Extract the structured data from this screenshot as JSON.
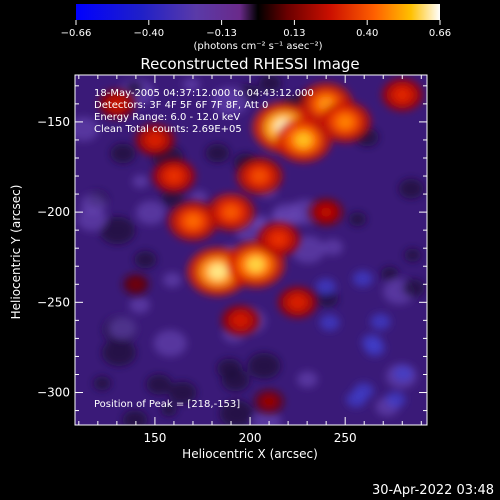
{
  "chart_data": {
    "type": "heatmap",
    "title": "Reconstructed RHESSI Image",
    "xlabel": "Heliocentric X (arcsec)",
    "ylabel": "Heliocentric Y (arcsec)",
    "xlim": [
      108,
      293
    ],
    "ylim": [
      -318,
      -124
    ],
    "xticks": [
      150,
      200,
      250
    ],
    "yticks": [
      -150,
      -200,
      -250,
      -300
    ],
    "colorbar": {
      "min": -0.66,
      "max": 0.66,
      "ticks": [
        "-0.66",
        "-0.40",
        "-0.13",
        "0.13",
        "0.40",
        "0.66"
      ],
      "unit_label": "(photons cm⁻² s⁻¹ asec⁻²)"
    },
    "annotations": [
      "18-May-2005 04:37:12.000 to 04:43:12.000",
      "Detectors: 3F 4F 5F 6F 7F 8F, Att 0",
      "Energy Range: 6.0 - 12.0 keV",
      "Clean     Total counts: 2.69E+05",
      "Position of Peak = [218,-153]"
    ],
    "footer_timestamp": "30-Apr-2022 03:48",
    "peaks": [
      {
        "x": 218,
        "y": -153,
        "value": 0.66
      },
      {
        "x": 183,
        "y": -233,
        "value": 0.62
      },
      {
        "x": 203,
        "y": -229,
        "value": 0.58
      },
      {
        "x": 228,
        "y": -160,
        "value": 0.55
      },
      {
        "x": 240,
        "y": -140,
        "value": 0.5
      },
      {
        "x": 250,
        "y": -150,
        "value": 0.48
      },
      {
        "x": 170,
        "y": -205,
        "value": 0.45
      },
      {
        "x": 190,
        "y": -200,
        "value": 0.42
      },
      {
        "x": 205,
        "y": -180,
        "value": 0.4
      },
      {
        "x": 160,
        "y": -180,
        "value": 0.35
      },
      {
        "x": 150,
        "y": -160,
        "value": 0.3
      },
      {
        "x": 215,
        "y": -215,
        "value": 0.35
      },
      {
        "x": 225,
        "y": -250,
        "value": 0.3
      },
      {
        "x": 195,
        "y": -260,
        "value": 0.28
      },
      {
        "x": 240,
        "y": -200,
        "value": 0.22
      },
      {
        "x": 130,
        "y": -140,
        "value": 0.25
      },
      {
        "x": 280,
        "y": -135,
        "value": 0.32
      },
      {
        "x": 210,
        "y": -305,
        "value": 0.15
      },
      {
        "x": 140,
        "y": -240,
        "value": 0.1
      }
    ]
  }
}
